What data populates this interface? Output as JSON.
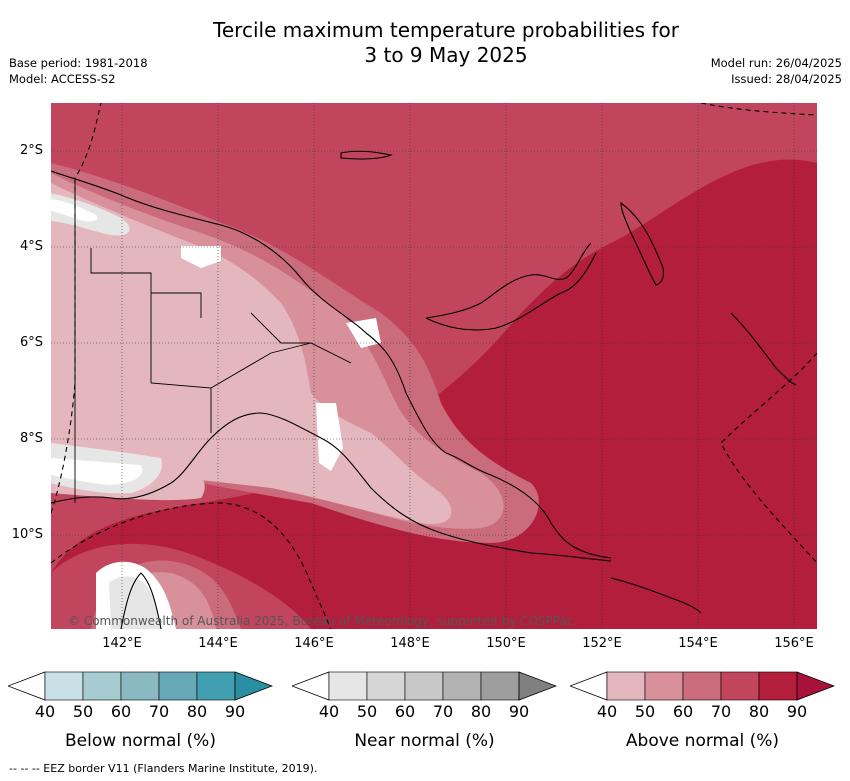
{
  "title": {
    "line1": "Tercile maximum temperature probabilities for",
    "line2": "3 to 9 May 2025"
  },
  "meta": {
    "base_period": "Base period: 1981-2018",
    "model": "Model: ACCESS-S2",
    "model_run": "Model run: 26/04/2025",
    "issued": "Issued: 28/04/2025"
  },
  "map": {
    "lat_labels": [
      "2°S",
      "4°S",
      "6°S",
      "8°S",
      "10°S"
    ],
    "lon_labels": [
      "142°E",
      "144°E",
      "146°E",
      "148°E",
      "150°E",
      "152°E",
      "154°E",
      "156°E"
    ],
    "copyright": "© Commonwealth of Australia 2025, Bureau of Meteorology, supported by COSPPac",
    "colors": {
      "above_90": "#b21e3c",
      "above_80": "#c1465d",
      "above_70": "#cb6c7c",
      "above_60": "#d8909b",
      "above_50": "#e3b7bd",
      "near_50": "#e6e6e6",
      "white": "#ffffff"
    }
  },
  "legends": [
    {
      "title": "Below normal (%)",
      "ticks": [
        "40",
        "50",
        "60",
        "70",
        "80",
        "90"
      ],
      "colors": [
        "#ffffff",
        "#c8e1e6",
        "#a6cbd1",
        "#8bb9c2",
        "#66a8b5",
        "#429fb1",
        "#2a8fa3"
      ]
    },
    {
      "title": "Near normal (%)",
      "ticks": [
        "40",
        "50",
        "60",
        "70",
        "80",
        "90"
      ],
      "colors": [
        "#ffffff",
        "#e6e6e6",
        "#d6d6d6",
        "#c8c8c8",
        "#b3b3b3",
        "#9e9e9e",
        "#808080"
      ]
    },
    {
      "title": "Above normal (%)",
      "ticks": [
        "40",
        "50",
        "60",
        "70",
        "80",
        "90"
      ],
      "colors": [
        "#ffffff",
        "#e3b7bd",
        "#d8909b",
        "#cb6c7c",
        "#c1465d",
        "#b21e3c",
        "#a8123a"
      ]
    }
  ],
  "footnote": "--  --  -- EEZ border V11 (Flanders Marine Institute, 2019)."
}
